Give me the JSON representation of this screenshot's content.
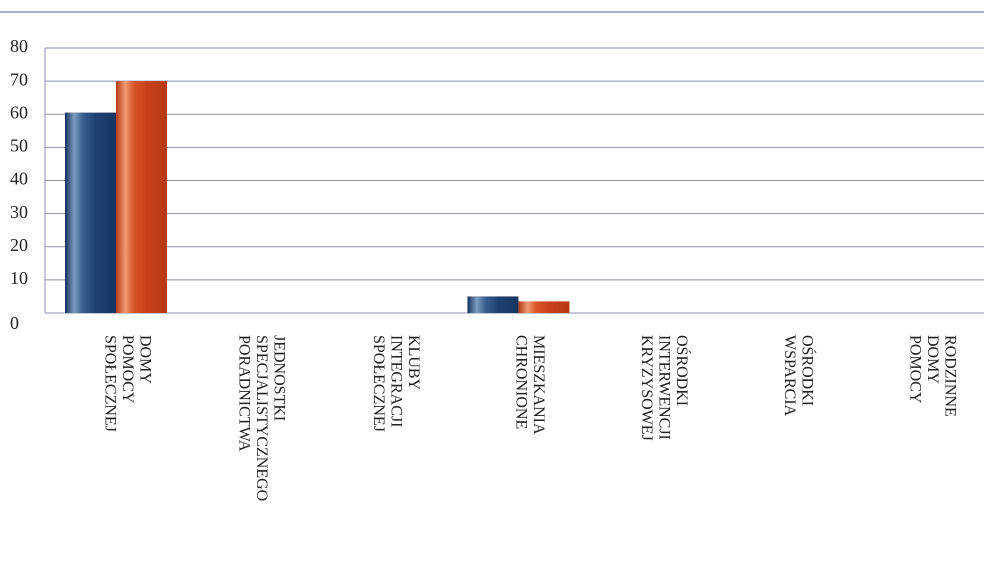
{
  "chart_data": {
    "type": "bar",
    "categories": [
      "DOMY POMOCY SPOŁECZNEJ",
      "JEDNOSTKI SPECJALISTYCZNEGO PORADNICTWA",
      "KLUBY INTEGRACJI SPOŁECZNEJ",
      "MIESZKANIA CHRONIONE",
      "OŚRODKI INTERWENCJI KRYZYSOWEJ",
      "OŚRODKI WSPARCIA",
      "RODZINNE DOMY POMOCY"
    ],
    "series": [
      {
        "color": "#1f4170",
        "values": [
          60.5,
          0,
          0,
          5,
          0,
          0,
          0
        ]
      },
      {
        "color": "#c9411b",
        "values": [
          70,
          0,
          0,
          3.5,
          0,
          0,
          0
        ]
      }
    ],
    "ylim": [
      0,
      80
    ],
    "yticks": [
      0,
      10,
      20,
      30,
      40,
      50,
      60,
      70,
      80
    ],
    "grid": true
  }
}
